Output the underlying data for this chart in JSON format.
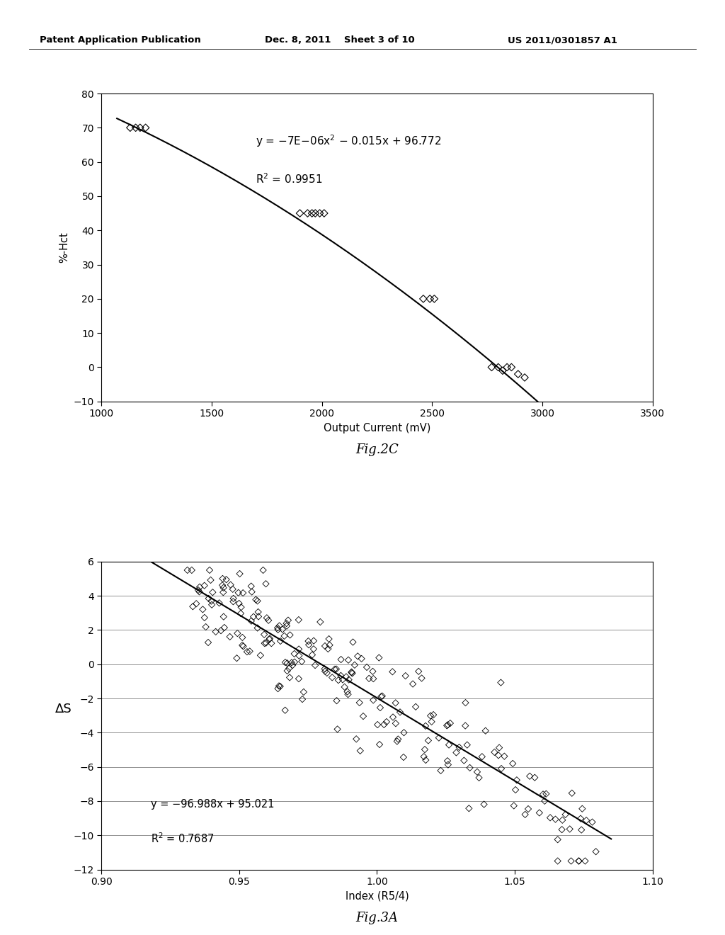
{
  "header_left": "Patent Application Publication",
  "header_center": "Dec. 8, 2011    Sheet 3 of 10",
  "header_right": "US 2011/0301857 A1",
  "fig2c": {
    "xlabel": "Output Current (mV)",
    "ylabel": "%-Hct",
    "xlim": [
      1000,
      3500
    ],
    "ylim": [
      -10,
      80
    ],
    "xticks": [
      1000,
      1500,
      2000,
      2500,
      3000,
      3500
    ],
    "yticks": [
      -10,
      0,
      10,
      20,
      30,
      40,
      50,
      60,
      70,
      80
    ],
    "scatter_x": [
      1130,
      1155,
      1175,
      1200,
      1900,
      1935,
      1955,
      1970,
      1990,
      2010,
      2460,
      2490,
      2510,
      2770,
      2800,
      2820,
      2840,
      2860,
      2890,
      2920
    ],
    "scatter_y": [
      70,
      70,
      70,
      70,
      45,
      45,
      45,
      45,
      45,
      45,
      20,
      20,
      20,
      0,
      0,
      -1,
      0,
      0,
      -2,
      -3
    ],
    "label_name": "Fig.2C"
  },
  "fig3a": {
    "xlabel": "Index (R5/4)",
    "ylabel": "ΔS",
    "xlim": [
      0.9,
      1.1
    ],
    "ylim": [
      -12,
      6
    ],
    "xticks": [
      0.9,
      0.95,
      1.0,
      1.05,
      1.1
    ],
    "yticks": [
      -12,
      -10,
      -8,
      -6,
      -4,
      -2,
      0,
      2,
      4,
      6
    ],
    "label_name": "Fig.3A",
    "eq_x": 0.918,
    "eq_y": -8.2,
    "r2_x": 0.918,
    "r2_y": -10.2
  },
  "scatter3a_seed": 7,
  "scatter3a_n": 230
}
